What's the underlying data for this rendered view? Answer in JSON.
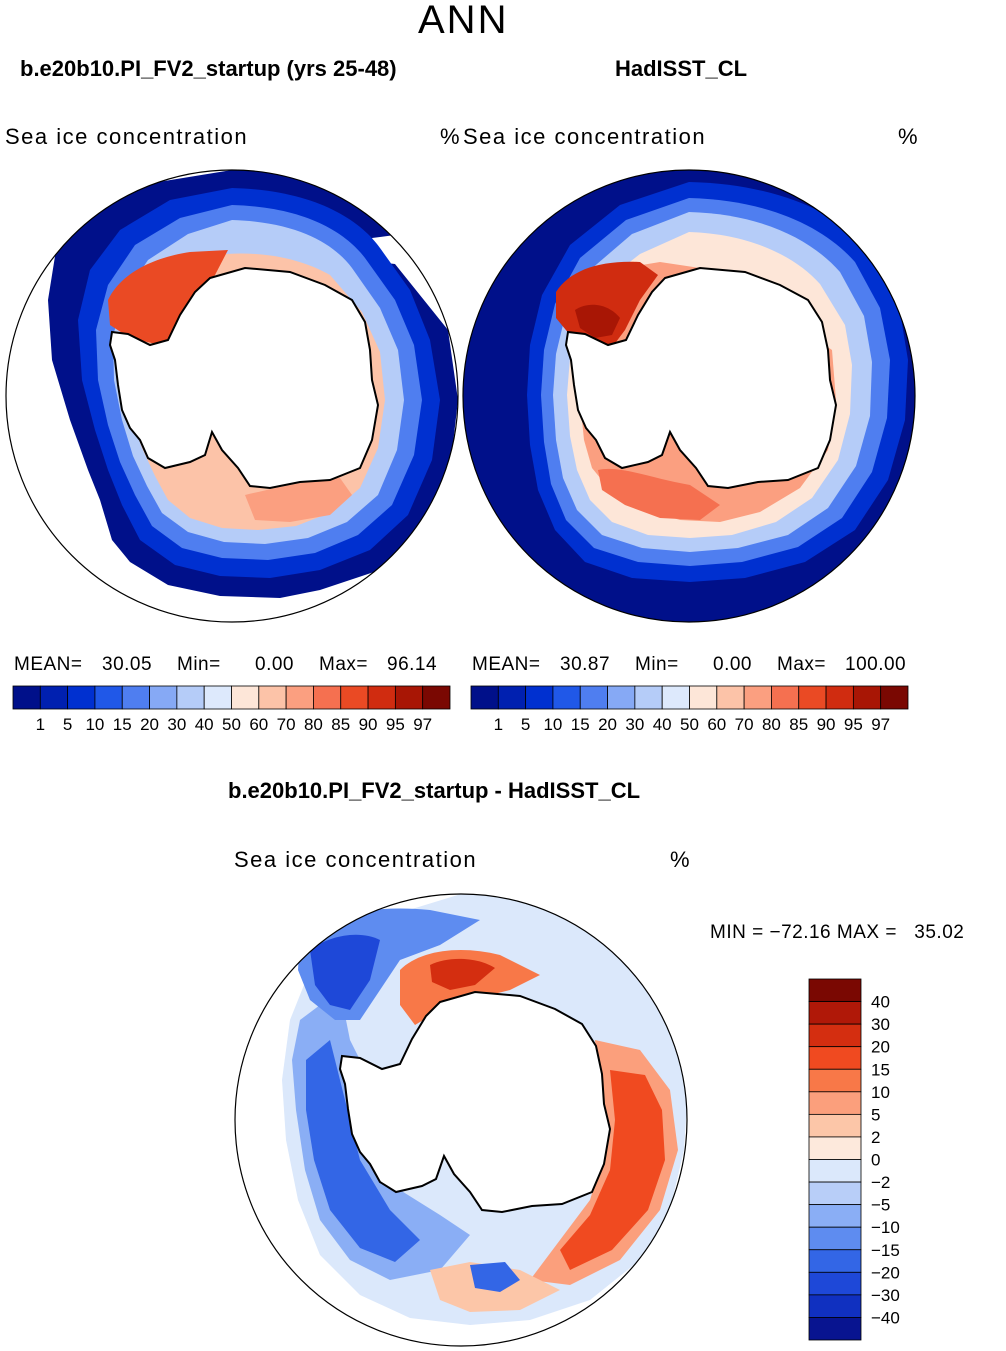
{
  "title": "ANN",
  "panels": [
    {
      "id": "model",
      "case_title": "b.e20b10.PI_FV2_startup (yrs 25-48)",
      "variable": "Sea ice concentration",
      "units": "%",
      "stats": {
        "mean_label": "MEAN=",
        "mean": "30.05",
        "min_label": "Min=",
        "min": "0.00",
        "max_label": "Max=",
        "max": "96.14"
      }
    },
    {
      "id": "obs",
      "case_title": "HadISST_CL",
      "variable": "Sea ice concentration",
      "units": "%",
      "stats": {
        "mean_label": "MEAN=",
        "mean": "30.87",
        "min_label": "Min=",
        "min": "0.00",
        "max_label": "Max=",
        "max": "100.00"
      }
    }
  ],
  "abs_colorbar": {
    "colors": [
      "#00108a",
      "#0020b0",
      "#0030d0",
      "#2058e8",
      "#4f7ef0",
      "#86a9f5",
      "#b5ccf8",
      "#dde9fc",
      "#fde6d8",
      "#fcc3a8",
      "#fb9f80",
      "#f57050",
      "#ea4a24",
      "#d02c10",
      "#a81605",
      "#7a0802"
    ],
    "tick_labels": [
      "1",
      "5",
      "10",
      "15",
      "20",
      "30",
      "40",
      "50",
      "60",
      "70",
      "80",
      "85",
      "90",
      "95",
      "97"
    ]
  },
  "diff_panel": {
    "case_title": "b.e20b10.PI_FV2_startup - HadISST_CL",
    "variable": "Sea ice concentration",
    "units": "%",
    "minmax_text": "MIN = −72.16 MAX =   35.02"
  },
  "diff_colorbar": {
    "colors": [
      "#7a0802",
      "#b01808",
      "#d42e10",
      "#f04a20",
      "#f87848",
      "#fb9f7c",
      "#fcc6a8",
      "#fde9dc",
      "#dbe8fb",
      "#b8cef8",
      "#8aaef5",
      "#5e8cf0",
      "#3366e6",
      "#1e48d8",
      "#1030c0",
      "#081490"
    ],
    "tick_labels": [
      "40",
      "30",
      "20",
      "15",
      "10",
      "5",
      "2",
      "0",
      "−2",
      "−5",
      "−10",
      "−15",
      "−20",
      "−30",
      "−40"
    ]
  }
}
